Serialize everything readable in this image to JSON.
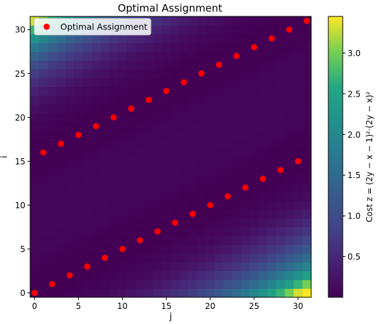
{
  "chart_data": {
    "type": "heatmap",
    "title": "Optimal Assignment",
    "xlabel": "j",
    "ylabel": "i",
    "grid_size": 32,
    "xlim": [
      -0.5,
      31.5
    ],
    "ylim": [
      -0.5,
      31.5
    ],
    "x_ticks": [
      0,
      5,
      10,
      15,
      20,
      25,
      30
    ],
    "y_ticks": [
      0,
      5,
      10,
      15,
      20,
      25,
      30
    ],
    "colorbar": {
      "label": "Cost z = (2y − x − 1)²·(2y − x)²",
      "range": [
        0,
        3.45
      ],
      "ticks": [
        0.5,
        1.0,
        1.5,
        2.0,
        2.5,
        3.0
      ],
      "tick_labels": [
        "0.5",
        "1.0",
        "1.5",
        "2.0",
        "2.5",
        "3.0"
      ],
      "colormap": "viridis"
    },
    "legend": {
      "position": "top-left",
      "label": "Optimal Assignment"
    },
    "series": [
      {
        "name": "Optimal Assignment",
        "marker": "circle",
        "color": "#ff0000",
        "points": [
          [
            0,
            0
          ],
          [
            2,
            1
          ],
          [
            4,
            2
          ],
          [
            6,
            3
          ],
          [
            8,
            4
          ],
          [
            10,
            5
          ],
          [
            12,
            6
          ],
          [
            14,
            7
          ],
          [
            16,
            8
          ],
          [
            18,
            9
          ],
          [
            20,
            10
          ],
          [
            22,
            11
          ],
          [
            24,
            12
          ],
          [
            26,
            13
          ],
          [
            28,
            14
          ],
          [
            30,
            15
          ],
          [
            1,
            16
          ],
          [
            3,
            17
          ],
          [
            5,
            18
          ],
          [
            7,
            19
          ],
          [
            9,
            20
          ],
          [
            11,
            21
          ],
          [
            13,
            22
          ],
          [
            15,
            23
          ],
          [
            17,
            24
          ],
          [
            19,
            25
          ],
          [
            21,
            26
          ],
          [
            23,
            27
          ],
          [
            25,
            28
          ],
          [
            27,
            29
          ],
          [
            29,
            30
          ],
          [
            31,
            31
          ]
        ]
      }
    ]
  }
}
